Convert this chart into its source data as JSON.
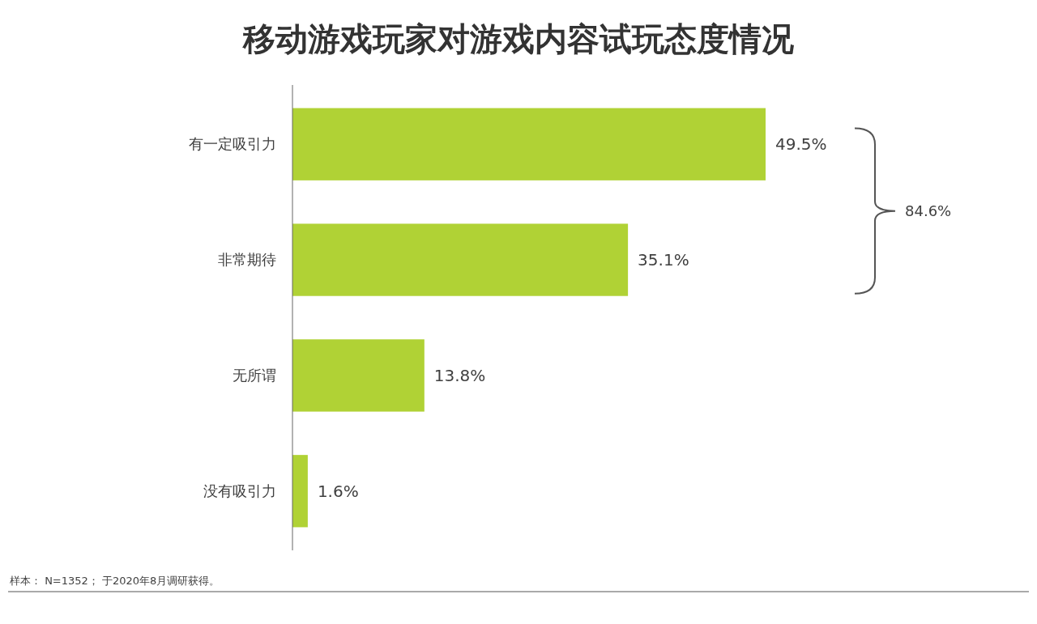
{
  "chart_data": {
    "type": "bar",
    "orientation": "horizontal",
    "title": "移动游戏玩家对游戏内容试玩态度情况",
    "categories": [
      "有一定吸引力",
      "非常期待",
      "无所谓",
      "没有吸引力"
    ],
    "values": [
      49.5,
      35.1,
      13.8,
      1.6
    ],
    "value_labels": [
      "49.5%",
      "35.1%",
      "13.8%",
      "1.6%"
    ],
    "color": "#b0d235",
    "relative": false,
    "annotations": [
      "84.6%",
      "样本： N=1352； 于2020年8月调研获得。"
    ]
  }
}
